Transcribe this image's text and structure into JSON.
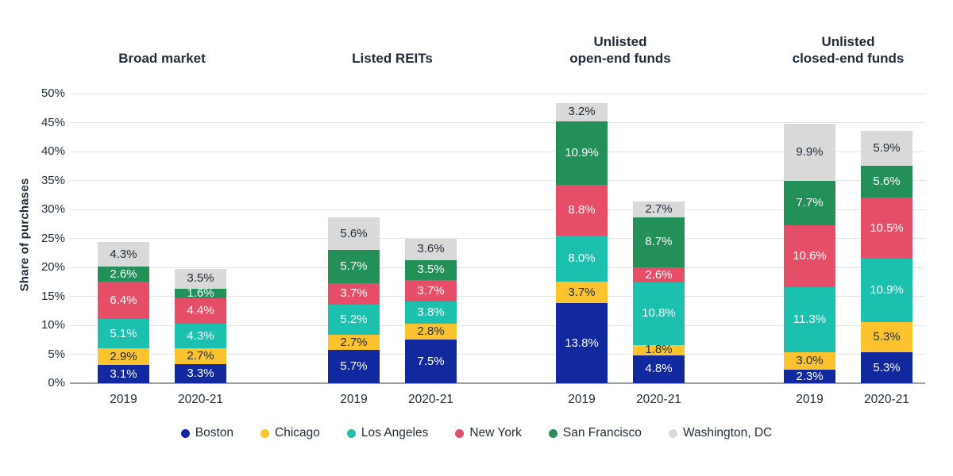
{
  "chart_data": {
    "type": "bar",
    "stacked": true,
    "title": "",
    "ylabel": "Share of purchases",
    "ylim": [
      0,
      50
    ],
    "ytick_step": 5,
    "ytick_suffix": "%",
    "grid": true,
    "legend_position": "bottom",
    "value_suffix": "%",
    "series": [
      {
        "name": "Boston",
        "color": "#11289F",
        "label_color": "#FFFFFF"
      },
      {
        "name": "Chicago",
        "color": "#FDC32E",
        "label_color": "#1F2C39"
      },
      {
        "name": "Los Angeles",
        "color": "#1BC1AE",
        "label_color": "#FFFFFF"
      },
      {
        "name": "New York",
        "color": "#E64D66",
        "label_color": "#FFFFFF"
      },
      {
        "name": "San Francisco",
        "color": "#23905A",
        "label_color": "#FFFFFF"
      },
      {
        "name": "Washington, DC",
        "color": "#D9D9D9",
        "label_color": "#1F2C39"
      }
    ],
    "groups": [
      {
        "label": "Broad market",
        "bars": [
          {
            "category": "2019",
            "values": [
              3.1,
              2.9,
              5.1,
              6.4,
              2.6,
              4.3
            ]
          },
          {
            "category": "2020-21",
            "values": [
              3.3,
              2.7,
              4.3,
              4.4,
              1.6,
              3.5
            ]
          }
        ]
      },
      {
        "label": "Listed REITs",
        "bars": [
          {
            "category": "2019",
            "values": [
              5.7,
              2.7,
              5.2,
              3.7,
              5.7,
              5.6
            ]
          },
          {
            "category": "2020-21",
            "values": [
              7.5,
              2.8,
              3.8,
              3.7,
              3.5,
              3.6
            ]
          }
        ]
      },
      {
        "label": "Unlisted\nopen-end funds",
        "bars": [
          {
            "category": "2019",
            "values": [
              13.8,
              3.7,
              8.0,
              8.8,
              10.9,
              3.2
            ]
          },
          {
            "category": "2020-21",
            "values": [
              4.8,
              1.8,
              10.8,
              2.6,
              8.7,
              2.7
            ]
          }
        ]
      },
      {
        "label": "Unlisted\nclosed-end funds",
        "bars": [
          {
            "category": "2019",
            "values": [
              2.3,
              3.0,
              11.3,
              10.6,
              7.7,
              9.9
            ]
          },
          {
            "category": "2020-21",
            "values": [
              5.3,
              5.3,
              10.9,
              10.5,
              5.6,
              5.9
            ]
          }
        ]
      }
    ]
  }
}
